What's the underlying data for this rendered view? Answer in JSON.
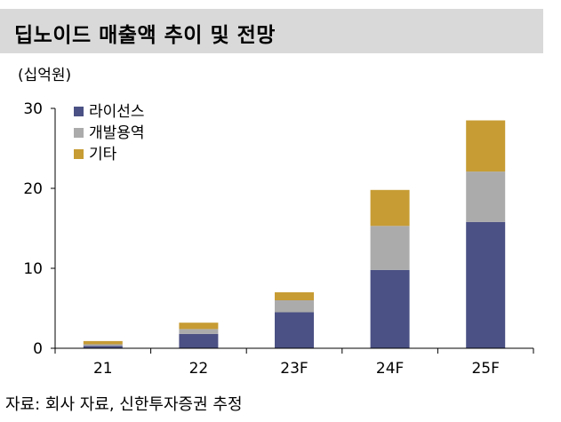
{
  "header": {
    "title": "딥노이드 매출액 추이 및 전망",
    "unit": "(십억원)"
  },
  "footer": {
    "source": "자료: 회사 자료, 신한투자증권 추정"
  },
  "colors": {
    "title_bg": "#d9d9d9",
    "license": "#4b5184",
    "development": "#ababab",
    "other": "#c79c34"
  },
  "chart_data": {
    "type": "bar",
    "stacked": true,
    "categories": [
      "21",
      "22",
      "23F",
      "24F",
      "25F"
    ],
    "series": [
      {
        "name": "라이선스",
        "color": "#4b5184",
        "values": [
          0.3,
          1.8,
          4.5,
          9.8,
          15.8
        ]
      },
      {
        "name": "개발용역",
        "color": "#ababab",
        "values": [
          0.2,
          0.6,
          1.5,
          5.5,
          6.3
        ]
      },
      {
        "name": "기타",
        "color": "#c79c34",
        "values": [
          0.4,
          0.8,
          1.0,
          4.5,
          6.4
        ]
      }
    ],
    "y_ticks": [
      "0",
      "10",
      "20",
      "30"
    ],
    "ylim": [
      0,
      30
    ],
    "grid": false,
    "legend_position": "top-left"
  }
}
